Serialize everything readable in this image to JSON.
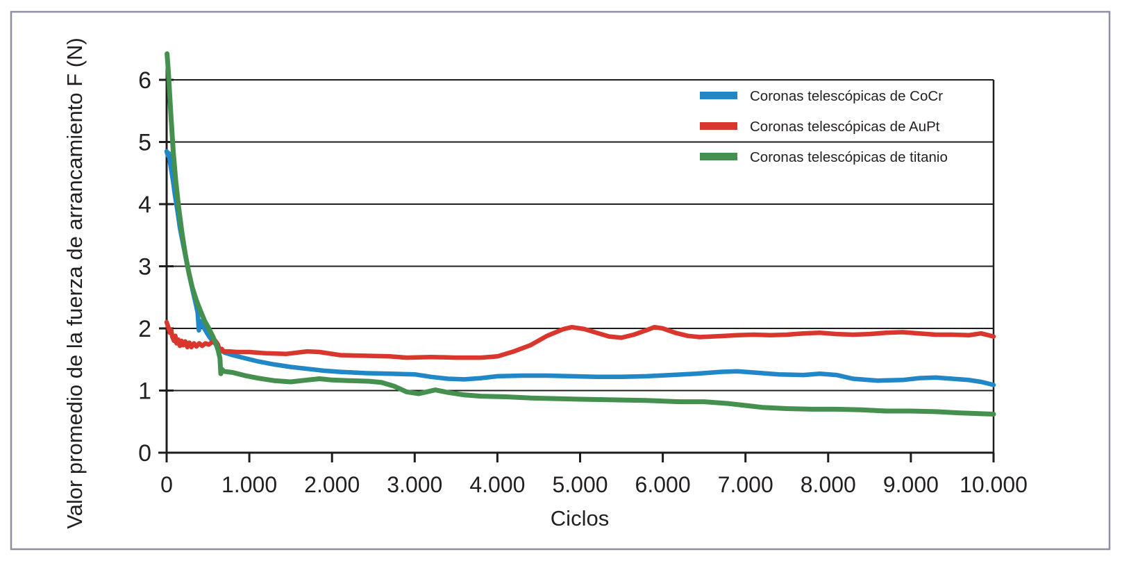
{
  "chart_data": {
    "type": "line",
    "title": "",
    "xlabel": "Ciclos",
    "ylabel": "Valor promedio de la fuerza de arrancamiento F (N)",
    "xlim": [
      0,
      10000
    ],
    "ylim": [
      0,
      6.45
    ],
    "grid": "horizontal-only",
    "legend_position": "top-right-inside",
    "x_ticks": [
      {
        "value": 0,
        "label": "0"
      },
      {
        "value": 1000,
        "label": "1.000"
      },
      {
        "value": 2000,
        "label": "2.000"
      },
      {
        "value": 3000,
        "label": "3.000"
      },
      {
        "value": 4000,
        "label": "4.000"
      },
      {
        "value": 5000,
        "label": "5.000"
      },
      {
        "value": 6000,
        "label": "6.000"
      },
      {
        "value": 7000,
        "label": "7.000"
      },
      {
        "value": 8000,
        "label": "8.000"
      },
      {
        "value": 9000,
        "label": "9.000"
      },
      {
        "value": 10000,
        "label": "10.000"
      }
    ],
    "y_ticks": [
      {
        "value": 0,
        "label": "0"
      },
      {
        "value": 1,
        "label": "1"
      },
      {
        "value": 2,
        "label": "2"
      },
      {
        "value": 3,
        "label": "3"
      },
      {
        "value": 4,
        "label": "4"
      },
      {
        "value": 5,
        "label": "5"
      },
      {
        "value": 6,
        "label": "6"
      }
    ],
    "colors": {
      "axis": "#1d1d1b",
      "text": "#231f20",
      "outer_border": "#8e90a2",
      "cocr_blue": "#2187c6",
      "aupt_red": "#d9362e",
      "titanio_green": "#45904e"
    },
    "series": [
      {
        "name": "Coronas telescópicas de CoCr",
        "color": "#2187c6",
        "points": [
          [
            0,
            4.85
          ],
          [
            15,
            4.78
          ],
          [
            25,
            4.82
          ],
          [
            40,
            4.68
          ],
          [
            60,
            4.52
          ],
          [
            80,
            4.35
          ],
          [
            100,
            4.15
          ],
          [
            130,
            3.9
          ],
          [
            160,
            3.62
          ],
          [
            200,
            3.35
          ],
          [
            240,
            3.08
          ],
          [
            280,
            2.82
          ],
          [
            320,
            2.58
          ],
          [
            355,
            2.38
          ],
          [
            375,
            2.25
          ],
          [
            390,
            1.97
          ],
          [
            405,
            2.12
          ],
          [
            425,
            2.08
          ],
          [
            455,
            2.0
          ],
          [
            490,
            1.92
          ],
          [
            530,
            1.84
          ],
          [
            570,
            1.78
          ],
          [
            610,
            1.72
          ],
          [
            650,
            1.66
          ],
          [
            700,
            1.61
          ],
          [
            800,
            1.57
          ],
          [
            950,
            1.52
          ],
          [
            1100,
            1.47
          ],
          [
            1300,
            1.42
          ],
          [
            1500,
            1.38
          ],
          [
            1700,
            1.35
          ],
          [
            1900,
            1.32
          ],
          [
            2100,
            1.3
          ],
          [
            2400,
            1.28
          ],
          [
            2700,
            1.27
          ],
          [
            3000,
            1.26
          ],
          [
            3200,
            1.22
          ],
          [
            3400,
            1.19
          ],
          [
            3600,
            1.18
          ],
          [
            3800,
            1.2
          ],
          [
            4000,
            1.23
          ],
          [
            4300,
            1.24
          ],
          [
            4600,
            1.24
          ],
          [
            4900,
            1.23
          ],
          [
            5200,
            1.22
          ],
          [
            5500,
            1.22
          ],
          [
            5800,
            1.23
          ],
          [
            6100,
            1.25
          ],
          [
            6400,
            1.27
          ],
          [
            6700,
            1.3
          ],
          [
            6900,
            1.31
          ],
          [
            7100,
            1.29
          ],
          [
            7400,
            1.26
          ],
          [
            7700,
            1.25
          ],
          [
            7900,
            1.27
          ],
          [
            8100,
            1.25
          ],
          [
            8300,
            1.19
          ],
          [
            8600,
            1.16
          ],
          [
            8900,
            1.17
          ],
          [
            9100,
            1.2
          ],
          [
            9300,
            1.21
          ],
          [
            9500,
            1.19
          ],
          [
            9700,
            1.17
          ],
          [
            9850,
            1.14
          ],
          [
            10000,
            1.09
          ]
        ]
      },
      {
        "name": "Coronas telescópicas de AuPt",
        "color": "#d9362e",
        "points": [
          [
            0,
            2.1
          ],
          [
            20,
            2.02
          ],
          [
            40,
            1.93
          ],
          [
            55,
            1.97
          ],
          [
            70,
            1.86
          ],
          [
            90,
            1.8
          ],
          [
            105,
            1.88
          ],
          [
            120,
            1.76
          ],
          [
            140,
            1.82
          ],
          [
            160,
            1.72
          ],
          [
            180,
            1.8
          ],
          [
            200,
            1.73
          ],
          [
            225,
            1.79
          ],
          [
            250,
            1.7
          ],
          [
            275,
            1.77
          ],
          [
            300,
            1.7
          ],
          [
            330,
            1.76
          ],
          [
            360,
            1.71
          ],
          [
            395,
            1.76
          ],
          [
            430,
            1.72
          ],
          [
            470,
            1.76
          ],
          [
            510,
            1.74
          ],
          [
            550,
            1.78
          ],
          [
            590,
            1.8
          ],
          [
            620,
            1.74
          ],
          [
            645,
            1.63
          ],
          [
            665,
            1.67
          ],
          [
            690,
            1.63
          ],
          [
            750,
            1.63
          ],
          [
            850,
            1.62
          ],
          [
            1000,
            1.62
          ],
          [
            1200,
            1.6
          ],
          [
            1450,
            1.59
          ],
          [
            1700,
            1.63
          ],
          [
            1850,
            1.62
          ],
          [
            2100,
            1.57
          ],
          [
            2400,
            1.56
          ],
          [
            2700,
            1.55
          ],
          [
            2900,
            1.53
          ],
          [
            3200,
            1.54
          ],
          [
            3500,
            1.53
          ],
          [
            3800,
            1.53
          ],
          [
            4000,
            1.55
          ],
          [
            4200,
            1.63
          ],
          [
            4400,
            1.73
          ],
          [
            4600,
            1.88
          ],
          [
            4800,
            1.99
          ],
          [
            4900,
            2.02
          ],
          [
            5050,
            1.99
          ],
          [
            5200,
            1.93
          ],
          [
            5350,
            1.87
          ],
          [
            5500,
            1.85
          ],
          [
            5650,
            1.9
          ],
          [
            5800,
            1.97
          ],
          [
            5900,
            2.02
          ],
          [
            6000,
            2.0
          ],
          [
            6150,
            1.93
          ],
          [
            6300,
            1.88
          ],
          [
            6450,
            1.86
          ],
          [
            6600,
            1.87
          ],
          [
            6750,
            1.88
          ],
          [
            6900,
            1.89
          ],
          [
            7100,
            1.9
          ],
          [
            7300,
            1.89
          ],
          [
            7500,
            1.9
          ],
          [
            7700,
            1.92
          ],
          [
            7900,
            1.93
          ],
          [
            8100,
            1.91
          ],
          [
            8300,
            1.9
          ],
          [
            8500,
            1.91
          ],
          [
            8700,
            1.93
          ],
          [
            8900,
            1.94
          ],
          [
            9100,
            1.92
          ],
          [
            9300,
            1.9
          ],
          [
            9500,
            1.9
          ],
          [
            9700,
            1.89
          ],
          [
            9850,
            1.92
          ],
          [
            10000,
            1.87
          ]
        ]
      },
      {
        "name": "Coronas telescópicas de titanio",
        "color": "#45904e",
        "points": [
          [
            5,
            6.42
          ],
          [
            20,
            6.15
          ],
          [
            35,
            5.8
          ],
          [
            55,
            5.35
          ],
          [
            80,
            4.85
          ],
          [
            110,
            4.38
          ],
          [
            145,
            3.95
          ],
          [
            185,
            3.55
          ],
          [
            225,
            3.2
          ],
          [
            265,
            2.92
          ],
          [
            310,
            2.66
          ],
          [
            360,
            2.45
          ],
          [
            410,
            2.28
          ],
          [
            460,
            2.12
          ],
          [
            510,
            2.0
          ],
          [
            555,
            1.88
          ],
          [
            595,
            1.76
          ],
          [
            625,
            1.64
          ],
          [
            645,
            1.52
          ],
          [
            655,
            1.27
          ],
          [
            670,
            1.34
          ],
          [
            690,
            1.31
          ],
          [
            800,
            1.29
          ],
          [
            950,
            1.24
          ],
          [
            1100,
            1.2
          ],
          [
            1300,
            1.16
          ],
          [
            1500,
            1.14
          ],
          [
            1700,
            1.17
          ],
          [
            1850,
            1.19
          ],
          [
            2000,
            1.17
          ],
          [
            2200,
            1.16
          ],
          [
            2450,
            1.15
          ],
          [
            2600,
            1.13
          ],
          [
            2750,
            1.07
          ],
          [
            2900,
            0.98
          ],
          [
            3050,
            0.95
          ],
          [
            3250,
            1.01
          ],
          [
            3400,
            0.97
          ],
          [
            3600,
            0.93
          ],
          [
            3800,
            0.91
          ],
          [
            4100,
            0.9
          ],
          [
            4400,
            0.88
          ],
          [
            4700,
            0.87
          ],
          [
            5000,
            0.86
          ],
          [
            5400,
            0.85
          ],
          [
            5800,
            0.84
          ],
          [
            6200,
            0.82
          ],
          [
            6500,
            0.82
          ],
          [
            6800,
            0.79
          ],
          [
            7000,
            0.76
          ],
          [
            7200,
            0.73
          ],
          [
            7500,
            0.71
          ],
          [
            7800,
            0.7
          ],
          [
            8100,
            0.7
          ],
          [
            8400,
            0.69
          ],
          [
            8700,
            0.67
          ],
          [
            9000,
            0.67
          ],
          [
            9300,
            0.66
          ],
          [
            9600,
            0.64
          ],
          [
            9800,
            0.63
          ],
          [
            10000,
            0.62
          ]
        ]
      }
    ]
  }
}
